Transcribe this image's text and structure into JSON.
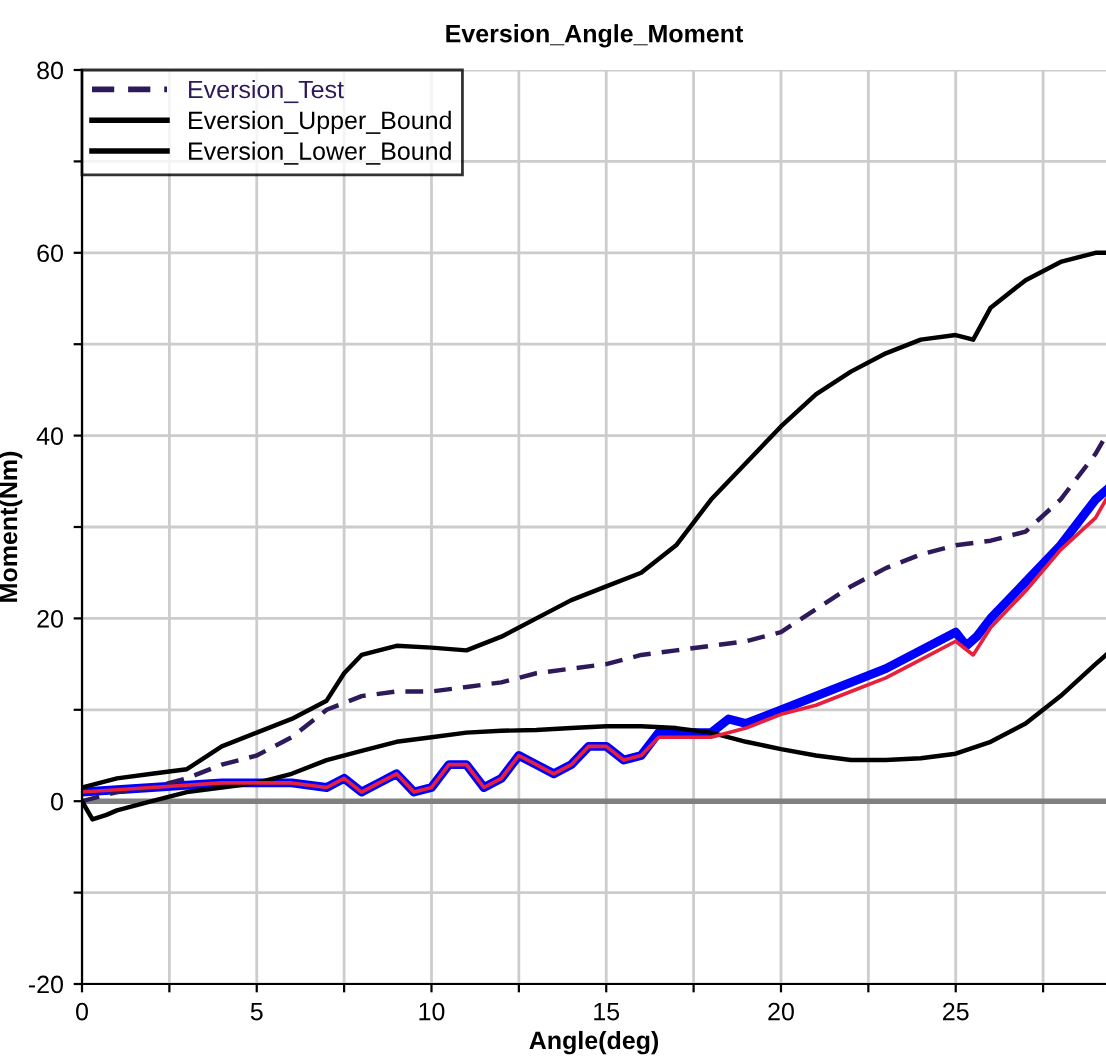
{
  "chart_data": {
    "type": "line",
    "title": "Eversion_Angle_Moment",
    "xlabel": "Angle(deg)",
    "ylabel": "Moment(Nm)",
    "xlim": [
      0,
      29.3
    ],
    "ylim": [
      -20,
      80
    ],
    "xticks": [
      0,
      {
        "value": 2.5,
        "label": null
      },
      5,
      {
        "value": 7.5,
        "label": null
      },
      10,
      {
        "value": 12.5,
        "label": null
      },
      15,
      {
        "value": 17.5,
        "label": null
      },
      20,
      {
        "value": 22.5,
        "label": null
      },
      25,
      {
        "value": 27.5,
        "label": null
      }
    ],
    "yticks": [
      -20,
      {
        "value": -10,
        "label": null
      },
      0,
      {
        "value": 10,
        "label": null
      },
      20,
      {
        "value": 30,
        "label": null
      },
      40,
      {
        "value": 50,
        "label": null
      },
      60,
      {
        "value": 70,
        "label": null
      },
      80
    ],
    "grid": true,
    "legend": "top left",
    "ref_lines": [
      {
        "axis": "y",
        "value": 0,
        "color": "#808080"
      }
    ],
    "series": [
      {
        "color": "#0000ff",
        "line_style": "solid",
        "x": [
          0,
          2,
          4,
          6,
          7,
          7.5,
          8,
          8.5,
          9,
          9.5,
          10,
          10.5,
          11,
          11.5,
          12,
          12.5,
          13,
          13.5,
          14,
          14.5,
          15,
          15.5,
          16,
          16.5,
          17,
          18,
          18.5,
          19,
          20,
          21,
          22,
          23,
          24,
          25,
          25.3,
          25.6,
          26,
          27,
          28,
          29,
          29.3
        ],
        "values": [
          1,
          1.5,
          2,
          2,
          1.5,
          2.5,
          1,
          2,
          3,
          1,
          1.5,
          4,
          4,
          1.5,
          2.5,
          5,
          4,
          3,
          4,
          6,
          6,
          4.5,
          5,
          7.5,
          7.5,
          7.5,
          9,
          8.5,
          10,
          11.5,
          13,
          14.5,
          16.5,
          18.5,
          17,
          18,
          20,
          24,
          28,
          33,
          34
        ]
      },
      {
        "name": "Eversion_Test",
        "color": "#2e1a5a",
        "line_style": "dashed",
        "x": [
          0,
          1,
          2,
          3,
          4,
          5,
          6,
          7,
          8,
          9,
          10,
          11,
          12,
          13,
          14,
          15,
          16,
          17,
          18,
          19,
          20,
          21,
          22,
          23,
          24,
          25,
          26,
          27,
          28,
          29,
          29.3
        ],
        "values": [
          0,
          1,
          1.5,
          2.5,
          4,
          5,
          7,
          10,
          11.5,
          12,
          12,
          12.5,
          13,
          14,
          14.5,
          15,
          16,
          16.5,
          17,
          17.5,
          18.5,
          21,
          23.5,
          25.5,
          27,
          28,
          28.5,
          29.5,
          33,
          38,
          40
        ]
      },
      {
        "name": "Eversion_Upper_Bound",
        "color": "#000000",
        "line_style": "solid",
        "x": [
          0,
          1,
          2,
          3,
          4,
          5,
          6,
          7,
          7.5,
          8,
          9,
          10,
          11,
          12,
          13,
          14,
          15,
          16,
          17,
          18,
          19,
          20,
          21,
          22,
          23,
          24,
          25,
          25.5,
          26,
          27,
          28,
          29,
          29.3
        ],
        "values": [
          1.5,
          2.5,
          3,
          3.5,
          6,
          7.5,
          9,
          11,
          14,
          16,
          17,
          16.8,
          16.5,
          18,
          20,
          22,
          23.5,
          25,
          28,
          33,
          37,
          41,
          44.5,
          47,
          49,
          50.5,
          51,
          50.5,
          54,
          57,
          59,
          60,
          60
        ]
      },
      {
        "name": "Eversion_Lower_Bound",
        "color": "#000000",
        "line_style": "solid",
        "x": [
          0,
          0.3,
          0.7,
          1,
          2,
          3,
          4,
          5,
          6,
          7,
          8,
          9,
          10,
          11,
          12,
          13,
          14,
          15,
          16,
          17,
          18,
          19,
          20,
          21,
          22,
          23,
          24,
          25,
          26,
          27,
          28,
          29,
          29.3
        ],
        "values": [
          0,
          -2,
          -1.5,
          -1,
          0,
          1,
          1.5,
          2,
          3,
          4.5,
          5.5,
          6.5,
          7,
          7.5,
          7.7,
          7.8,
          8,
          8.2,
          8.2,
          8,
          7.5,
          6.5,
          5.7,
          5,
          4.5,
          4.5,
          4.7,
          5.2,
          6.5,
          8.5,
          11.5,
          15,
          16
        ]
      },
      {
        "color": "#e8203c",
        "line_style": "solid",
        "x": [
          0,
          2,
          4,
          6,
          7,
          7.5,
          8,
          8.5,
          9,
          9.5,
          10,
          10.5,
          11,
          11.5,
          12,
          12.5,
          13,
          13.5,
          14,
          14.5,
          15,
          15.5,
          16,
          16.5,
          17,
          18,
          19,
          20,
          21,
          22,
          23,
          24,
          25,
          25.5,
          26,
          27,
          28,
          29,
          29.3
        ],
        "values": [
          1,
          1.5,
          2,
          2,
          1.5,
          2.5,
          1,
          2,
          3,
          1,
          1.5,
          4,
          4,
          1.5,
          2.5,
          5,
          4,
          3,
          4,
          6,
          6,
          4.5,
          5,
          7,
          7,
          7,
          8,
          9.5,
          10.5,
          12,
          13.5,
          15.5,
          17.5,
          16,
          19,
          23,
          27.5,
          31,
          33
        ]
      }
    ]
  }
}
